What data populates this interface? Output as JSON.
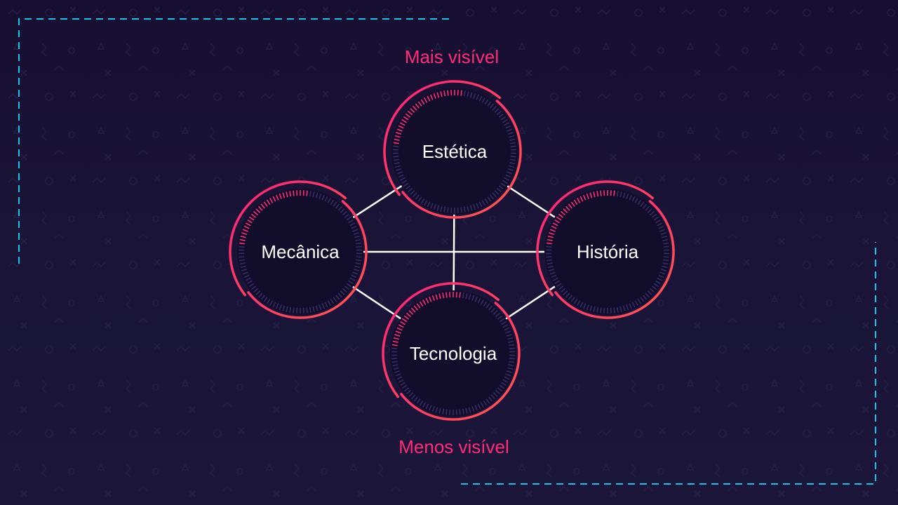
{
  "diagram": {
    "top_caption": "Mais visível",
    "bottom_caption": "Menos visível",
    "nodes": [
      {
        "id": "estetica",
        "label": "Estética"
      },
      {
        "id": "mecanica",
        "label": "Mecânica"
      },
      {
        "id": "historia",
        "label": "História"
      },
      {
        "id": "tecnologia",
        "label": "Tecnologia"
      }
    ],
    "connections": [
      [
        "estetica",
        "mecanica"
      ],
      [
        "estetica",
        "historia"
      ],
      [
        "mecanica",
        "tecnologia"
      ],
      [
        "historia",
        "tecnologia"
      ],
      [
        "mecanica",
        "historia"
      ],
      [
        "estetica",
        "tecnologia"
      ]
    ]
  },
  "colors": {
    "background": "#1a1538",
    "node_fill": "#120d2a",
    "ring_pink": "#ff2d78",
    "ring_red": "#ff4a5a",
    "tick_dim": "#3a3470",
    "line": "#ffffff",
    "caption": "#ff2d78",
    "dashed_frame": "#19c3e6"
  }
}
